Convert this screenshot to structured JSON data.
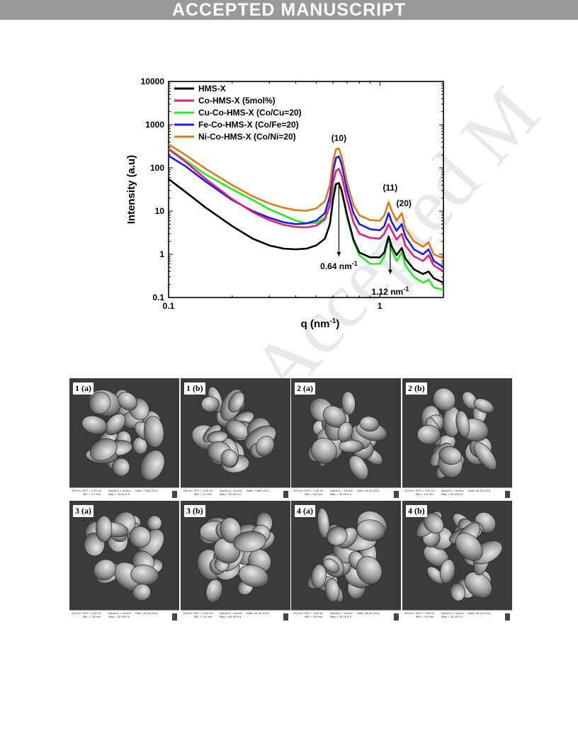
{
  "header": {
    "banner": "ACCEPTED MANUSCRIPT"
  },
  "watermark": "Accepted M",
  "chart_data": {
    "type": "line",
    "xscale": "log",
    "yscale": "log",
    "xlim": [
      0.1,
      2.0
    ],
    "ylim": [
      0.1,
      10000
    ],
    "xlabel": "q (nm",
    "xlabel_sup": "-1",
    "xlabel_tail": ")",
    "ylabel": "Intensity (a.u)",
    "xticks": [
      {
        "v": 0.1,
        "label": "0.1"
      },
      {
        "v": 1,
        "label": "1"
      }
    ],
    "yticks": [
      {
        "v": 0.1,
        "label": "0.1"
      },
      {
        "v": 1,
        "label": "1"
      },
      {
        "v": 10,
        "label": "10"
      },
      {
        "v": 100,
        "label": "100"
      },
      {
        "v": 1000,
        "label": "1000"
      },
      {
        "v": 10000,
        "label": "10000"
      }
    ],
    "legend_position": "top-left",
    "series": [
      {
        "name": "HMS-X",
        "color": "#000000",
        "points": [
          [
            0.1,
            55
          ],
          [
            0.12,
            28
          ],
          [
            0.15,
            12
          ],
          [
            0.2,
            4.5
          ],
          [
            0.25,
            2.3
          ],
          [
            0.3,
            1.6
          ],
          [
            0.35,
            1.35
          ],
          [
            0.4,
            1.3
          ],
          [
            0.45,
            1.35
          ],
          [
            0.5,
            1.6
          ],
          [
            0.55,
            2.3
          ],
          [
            0.58,
            5
          ],
          [
            0.6,
            18
          ],
          [
            0.62,
            42
          ],
          [
            0.64,
            45
          ],
          [
            0.66,
            30
          ],
          [
            0.7,
            8
          ],
          [
            0.75,
            2.2
          ],
          [
            0.8,
            1.1
          ],
          [
            0.9,
            0.85
          ],
          [
            1.0,
            0.85
          ],
          [
            1.05,
            1.1
          ],
          [
            1.1,
            2.6
          ],
          [
            1.14,
            1.5
          ],
          [
            1.2,
            0.95
          ],
          [
            1.27,
            1.4
          ],
          [
            1.32,
            0.8
          ],
          [
            1.45,
            0.45
          ],
          [
            1.6,
            0.35
          ],
          [
            1.7,
            0.4
          ],
          [
            1.8,
            0.28
          ],
          [
            2.0,
            0.22
          ]
        ]
      },
      {
        "name": "Co-HMS-X (5mol%)",
        "color": "#e0207a",
        "points": [
          [
            0.1,
            270
          ],
          [
            0.12,
            140
          ],
          [
            0.15,
            55
          ],
          [
            0.2,
            19
          ],
          [
            0.25,
            9.5
          ],
          [
            0.3,
            6.2
          ],
          [
            0.35,
            4.8
          ],
          [
            0.4,
            4.3
          ],
          [
            0.45,
            4.2
          ],
          [
            0.5,
            4.6
          ],
          [
            0.55,
            6.5
          ],
          [
            0.58,
            14
          ],
          [
            0.6,
            45
          ],
          [
            0.62,
            85
          ],
          [
            0.64,
            95
          ],
          [
            0.66,
            65
          ],
          [
            0.7,
            18
          ],
          [
            0.75,
            5.5
          ],
          [
            0.8,
            3
          ],
          [
            0.9,
            2.4
          ],
          [
            1.0,
            2.3
          ],
          [
            1.05,
            3
          ],
          [
            1.1,
            5
          ],
          [
            1.14,
            3.5
          ],
          [
            1.2,
            2.2
          ],
          [
            1.27,
            3
          ],
          [
            1.32,
            1.6
          ],
          [
            1.45,
            0.9
          ],
          [
            1.6,
            0.7
          ],
          [
            1.7,
            0.95
          ],
          [
            1.8,
            0.55
          ],
          [
            2.0,
            0.4
          ]
        ]
      },
      {
        "name": "Cu-Co-HMS-X (Co/Cu=20)",
        "color": "#22ee22",
        "points": [
          [
            0.1,
            280
          ],
          [
            0.12,
            150
          ],
          [
            0.15,
            70
          ],
          [
            0.2,
            32
          ],
          [
            0.25,
            18
          ],
          [
            0.3,
            11
          ],
          [
            0.35,
            8
          ],
          [
            0.4,
            6
          ],
          [
            0.45,
            5.2
          ],
          [
            0.5,
            5.3
          ],
          [
            0.55,
            7
          ],
          [
            0.58,
            13
          ],
          [
            0.6,
            30
          ],
          [
            0.62,
            42
          ],
          [
            0.64,
            44
          ],
          [
            0.66,
            28
          ],
          [
            0.7,
            7
          ],
          [
            0.75,
            2
          ],
          [
            0.8,
            0.95
          ],
          [
            0.9,
            0.6
          ],
          [
            1.0,
            0.6
          ],
          [
            1.05,
            0.9
          ],
          [
            1.1,
            2.3
          ],
          [
            1.14,
            1.2
          ],
          [
            1.2,
            0.7
          ],
          [
            1.27,
            1.1
          ],
          [
            1.32,
            0.55
          ],
          [
            1.45,
            0.3
          ],
          [
            1.6,
            0.22
          ],
          [
            1.7,
            0.26
          ],
          [
            1.8,
            0.17
          ],
          [
            2.0,
            0.15
          ]
        ]
      },
      {
        "name": "Fe-Co-HMS-X (Co/Fe=20)",
        "color": "#1a1aee",
        "points": [
          [
            0.1,
            190
          ],
          [
            0.12,
            110
          ],
          [
            0.15,
            48
          ],
          [
            0.2,
            18
          ],
          [
            0.25,
            10
          ],
          [
            0.3,
            7
          ],
          [
            0.35,
            5.5
          ],
          [
            0.4,
            5
          ],
          [
            0.45,
            5.2
          ],
          [
            0.5,
            6
          ],
          [
            0.55,
            9
          ],
          [
            0.58,
            22
          ],
          [
            0.6,
            80
          ],
          [
            0.62,
            170
          ],
          [
            0.64,
            185
          ],
          [
            0.66,
            120
          ],
          [
            0.7,
            30
          ],
          [
            0.75,
            9
          ],
          [
            0.8,
            5
          ],
          [
            0.9,
            3.8
          ],
          [
            1.0,
            3.6
          ],
          [
            1.05,
            4.5
          ],
          [
            1.1,
            9
          ],
          [
            1.14,
            5.5
          ],
          [
            1.2,
            3.5
          ],
          [
            1.27,
            5
          ],
          [
            1.32,
            2.6
          ],
          [
            1.45,
            1.3
          ],
          [
            1.6,
            1
          ],
          [
            1.7,
            1.3
          ],
          [
            1.8,
            0.7
          ],
          [
            2.0,
            0.5
          ]
        ]
      },
      {
        "name": "Ni-Co-HMS-X (Co/Ni=20)",
        "color": "#e07a1a",
        "points": [
          [
            0.1,
            350
          ],
          [
            0.12,
            200
          ],
          [
            0.15,
            95
          ],
          [
            0.2,
            40
          ],
          [
            0.25,
            22
          ],
          [
            0.3,
            15
          ],
          [
            0.35,
            12
          ],
          [
            0.4,
            10.5
          ],
          [
            0.45,
            10.2
          ],
          [
            0.5,
            11.5
          ],
          [
            0.55,
            17
          ],
          [
            0.58,
            40
          ],
          [
            0.6,
            140
          ],
          [
            0.62,
            270
          ],
          [
            0.64,
            280
          ],
          [
            0.66,
            180
          ],
          [
            0.7,
            45
          ],
          [
            0.75,
            14
          ],
          [
            0.8,
            8
          ],
          [
            0.9,
            6.2
          ],
          [
            1.0,
            6
          ],
          [
            1.05,
            8
          ],
          [
            1.1,
            16
          ],
          [
            1.14,
            10
          ],
          [
            1.2,
            6
          ],
          [
            1.27,
            9
          ],
          [
            1.32,
            4
          ],
          [
            1.45,
            2
          ],
          [
            1.6,
            1.5
          ],
          [
            1.7,
            1.9
          ],
          [
            1.8,
            1
          ],
          [
            2.0,
            0.8
          ]
        ]
      }
    ],
    "annotations": [
      {
        "text": "(10)",
        "x": 0.64,
        "y": 420
      },
      {
        "text": "(11)",
        "x": 1.12,
        "y": 30
      },
      {
        "text": "(20)",
        "x": 1.3,
        "y": 13
      },
      {
        "text": "0.64 nm",
        "sup": "-1",
        "x": 0.64,
        "y": 0.55,
        "arrow_from": 45,
        "arrow_to": 0.9
      },
      {
        "text": "1.12 nm",
        "sup": "-1",
        "x": 1.12,
        "y": 0.14,
        "arrow_from": 2.2,
        "arrow_to": 0.35
      }
    ]
  },
  "sem_panels": [
    {
      "label": "1 (a)",
      "scale": "200 nm",
      "eht": "EHT = 5.00 kV",
      "wd": "WD = 3.1 mm",
      "signal": "Signal A = InLens",
      "mag": "Mag = 25.01 K X",
      "date": "Date: 7 Nov 2013"
    },
    {
      "label": "1 (b)",
      "scale": "100 nm",
      "eht": "EHT = 5.00 kV",
      "wd": "WD = 3.1 mm",
      "signal": "Signal A = InLens",
      "mag": "Mag = 30.00 K X",
      "date": "Date: 7 Nov 2013"
    },
    {
      "label": "2 (a)",
      "scale": "200 nm",
      "eht": "EHT = 5.00 kV",
      "wd": "WD = 2.6 mm",
      "signal": "Signal A = InLens",
      "mag": "Mag = 30.00 K X",
      "date": "Date: 28 Jul 2014"
    },
    {
      "label": "2 (b)",
      "scale": "100 nm",
      "eht": "EHT = 5.00 kV",
      "wd": "WD = 2.6 mm",
      "signal": "Signal A = InLens",
      "mag": "Mag = 40.00 K X",
      "date": "Date: 28 Jul 2014"
    },
    {
      "label": "3 (a)",
      "scale": "200 nm",
      "eht": "EHT = 5.00 kV",
      "wd": "WD = 2.6 mm",
      "signal": "Signal A = InLens",
      "mag": "Mag = 30.00 K X",
      "date": "Date: 28 Jul 2014"
    },
    {
      "label": "3 (b)",
      "scale": "100 nm",
      "eht": "EHT = 5.00 kV",
      "wd": "WD = 2.6 mm",
      "signal": "Signal A = InLens",
      "mag": "Mag = 40.00 K X",
      "date": "Date: 28 Jul 2014"
    },
    {
      "label": "4 (a)",
      "scale": "200 nm",
      "eht": "EHT = 5.00 kV",
      "wd": "WD = 2.6 mm",
      "signal": "Signal A = InLens",
      "mag": "Mag = 30.00 K X",
      "date": "Date: 28 Jul 2014"
    },
    {
      "label": "4 (b)",
      "scale": "200 nm",
      "eht": "EHT = 5.00 kV",
      "wd": "WD = 2.6 mm",
      "signal": "Signal A = InLens",
      "mag": "Mag = 30.00 K X",
      "date": "Date: 28 Jul 2014"
    }
  ]
}
